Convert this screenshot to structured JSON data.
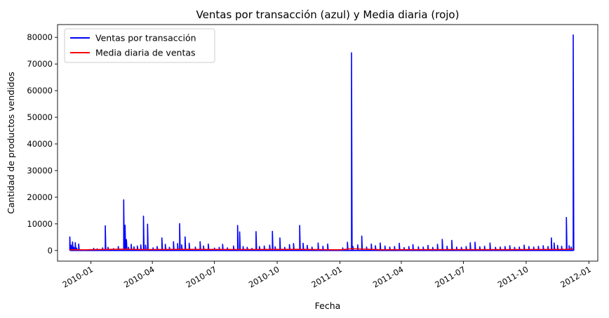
{
  "chart_data": {
    "type": "line",
    "title": "Ventas por transacción (azul) y Media diaria (rojo)",
    "xlabel": "Fecha",
    "ylabel": "Cantidad de productos vendidos",
    "xlim": [
      "2009-11-13",
      "2012-01-14"
    ],
    "ylim": [
      -4000,
      84800
    ],
    "grid": false,
    "legend_position": "top-left",
    "x_ticks": [
      "2010-01",
      "2010-04",
      "2010-07",
      "2010-10",
      "2011-01",
      "2011-04",
      "2011-07",
      "2011-10",
      "2012-01"
    ],
    "y_ticks": [
      0,
      10000,
      20000,
      30000,
      40000,
      50000,
      60000,
      70000,
      80000
    ],
    "colors": {
      "sales": "#0000ff",
      "mean": "#ff0000"
    },
    "series": [
      {
        "name": "Ventas por transacción",
        "color": "#0000ff",
        "style": "spikes",
        "points": [
          [
            "2009-12-01",
            5100
          ],
          [
            "2009-12-03",
            2000
          ],
          [
            "2009-12-05",
            3200
          ],
          [
            "2009-12-07",
            1200
          ],
          [
            "2009-12-09",
            2900
          ],
          [
            "2009-12-11",
            900
          ],
          [
            "2009-12-14",
            2400
          ],
          [
            "2010-01-05",
            800
          ],
          [
            "2010-01-10",
            600
          ],
          [
            "2010-01-18",
            1000
          ],
          [
            "2010-01-22",
            9300
          ],
          [
            "2010-01-26",
            1200
          ],
          [
            "2010-02-03",
            700
          ],
          [
            "2010-02-10",
            1500
          ],
          [
            "2010-02-18",
            19000
          ],
          [
            "2010-02-20",
            9500
          ],
          [
            "2010-02-22",
            4100
          ],
          [
            "2010-02-25",
            1200
          ],
          [
            "2010-03-01",
            2300
          ],
          [
            "2010-03-05",
            1400
          ],
          [
            "2010-03-10",
            1700
          ],
          [
            "2010-03-15",
            2100
          ],
          [
            "2010-03-19",
            12900
          ],
          [
            "2010-03-22",
            2000
          ],
          [
            "2010-03-25",
            9900
          ],
          [
            "2010-04-02",
            1000
          ],
          [
            "2010-04-08",
            1500
          ],
          [
            "2010-04-15",
            4700
          ],
          [
            "2010-04-20",
            2300
          ],
          [
            "2010-04-26",
            1200
          ],
          [
            "2010-05-02",
            3300
          ],
          [
            "2010-05-08",
            2600
          ],
          [
            "2010-05-11",
            10100
          ],
          [
            "2010-05-14",
            2100
          ],
          [
            "2010-05-19",
            5100
          ],
          [
            "2010-05-25",
            2700
          ],
          [
            "2010-06-03",
            1300
          ],
          [
            "2010-06-10",
            3300
          ],
          [
            "2010-06-15",
            1700
          ],
          [
            "2010-06-22",
            2400
          ],
          [
            "2010-07-01",
            900
          ],
          [
            "2010-07-08",
            1200
          ],
          [
            "2010-07-13",
            2300
          ],
          [
            "2010-07-20",
            1000
          ],
          [
            "2010-07-29",
            1700
          ],
          [
            "2010-08-04",
            9400
          ],
          [
            "2010-08-07",
            7000
          ],
          [
            "2010-08-12",
            1500
          ],
          [
            "2010-08-18",
            1200
          ],
          [
            "2010-08-25",
            800
          ],
          [
            "2010-08-31",
            7100
          ],
          [
            "2010-09-05",
            1500
          ],
          [
            "2010-09-12",
            1700
          ],
          [
            "2010-09-20",
            2000
          ],
          [
            "2010-09-24",
            7200
          ],
          [
            "2010-09-28",
            1400
          ],
          [
            "2010-10-05",
            4700
          ],
          [
            "2010-10-12",
            1200
          ],
          [
            "2010-10-19",
            2200
          ],
          [
            "2010-10-25",
            2600
          ],
          [
            "2010-11-03",
            9400
          ],
          [
            "2010-11-08",
            2700
          ],
          [
            "2010-11-14",
            1900
          ],
          [
            "2010-11-21",
            1300
          ],
          [
            "2010-11-30",
            2800
          ],
          [
            "2010-12-07",
            1600
          ],
          [
            "2010-12-14",
            2400
          ],
          [
            "2011-01-05",
            1000
          ],
          [
            "2011-01-12",
            3100
          ],
          [
            "2011-01-18",
            74200
          ],
          [
            "2011-01-20",
            1500
          ],
          [
            "2011-01-27",
            2100
          ],
          [
            "2011-02-02",
            5400
          ],
          [
            "2011-02-09",
            1300
          ],
          [
            "2011-02-16",
            2400
          ],
          [
            "2011-02-22",
            1800
          ],
          [
            "2011-03-01",
            2800
          ],
          [
            "2011-03-08",
            1700
          ],
          [
            "2011-03-15",
            1300
          ],
          [
            "2011-03-22",
            1500
          ],
          [
            "2011-03-29",
            2700
          ],
          [
            "2011-04-05",
            1100
          ],
          [
            "2011-04-12",
            1500
          ],
          [
            "2011-04-18",
            2200
          ],
          [
            "2011-04-26",
            1400
          ],
          [
            "2011-05-03",
            1300
          ],
          [
            "2011-05-10",
            1900
          ],
          [
            "2011-05-17",
            1200
          ],
          [
            "2011-05-24",
            2300
          ],
          [
            "2011-05-31",
            4200
          ],
          [
            "2011-06-07",
            1600
          ],
          [
            "2011-06-14",
            3800
          ],
          [
            "2011-06-21",
            1300
          ],
          [
            "2011-06-28",
            1200
          ],
          [
            "2011-07-05",
            1500
          ],
          [
            "2011-07-11",
            2900
          ],
          [
            "2011-07-18",
            3100
          ],
          [
            "2011-07-25",
            1400
          ],
          [
            "2011-08-01",
            1600
          ],
          [
            "2011-08-09",
            2800
          ],
          [
            "2011-08-17",
            1200
          ],
          [
            "2011-08-24",
            1300
          ],
          [
            "2011-08-31",
            1500
          ],
          [
            "2011-09-07",
            1800
          ],
          [
            "2011-09-14",
            1200
          ],
          [
            "2011-09-21",
            1300
          ],
          [
            "2011-09-28",
            2000
          ],
          [
            "2011-10-05",
            1500
          ],
          [
            "2011-10-12",
            1300
          ],
          [
            "2011-10-19",
            1600
          ],
          [
            "2011-10-26",
            1800
          ],
          [
            "2011-11-02",
            1500
          ],
          [
            "2011-11-07",
            4700
          ],
          [
            "2011-11-11",
            2800
          ],
          [
            "2011-11-16",
            1900
          ],
          [
            "2011-11-22",
            1600
          ],
          [
            "2011-11-29",
            12400
          ],
          [
            "2011-12-03",
            1800
          ],
          [
            "2011-12-06",
            1300
          ],
          [
            "2011-12-09",
            80900
          ]
        ]
      },
      {
        "name": "Media diaria de ventas",
        "color": "#ff0000",
        "style": "line",
        "points": [
          [
            "2009-12-01",
            300
          ],
          [
            "2009-12-23",
            250
          ],
          [
            "2010-01-04",
            320
          ],
          [
            "2010-02-18",
            500
          ],
          [
            "2010-03-20",
            350
          ],
          [
            "2010-05-11",
            420
          ],
          [
            "2010-08-04",
            380
          ],
          [
            "2010-11-03",
            420
          ],
          [
            "2010-12-23",
            260
          ],
          [
            "2011-01-04",
            300
          ],
          [
            "2011-01-18",
            650
          ],
          [
            "2011-03-01",
            310
          ],
          [
            "2011-06-01",
            320
          ],
          [
            "2011-09-01",
            340
          ],
          [
            "2011-11-29",
            420
          ],
          [
            "2011-12-09",
            600
          ]
        ]
      }
    ]
  }
}
